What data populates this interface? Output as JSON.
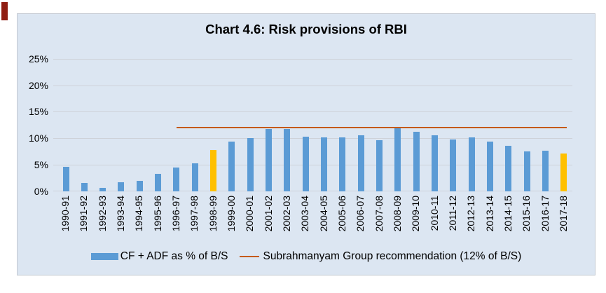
{
  "chart_data": {
    "type": "bar",
    "title": "Chart 4.6: Risk provisions of RBI",
    "categories": [
      "1990-91",
      "1991-92",
      "1992-93",
      "1993-94",
      "1994-95",
      "1995-96",
      "1996-97",
      "1997-98",
      "1998-99",
      "1999-00",
      "2000-01",
      "2001-02",
      "2002-03",
      "2003-04",
      "2004-05",
      "2005-06",
      "2006-07",
      "2007-08",
      "2008-09",
      "2009-10",
      "2010-11",
      "2011-12",
      "2012-13",
      "2013-14",
      "2014-15",
      "2015-16",
      "2016-17",
      "2017-18"
    ],
    "series": [
      {
        "name": "CF + ADF as % of B/S",
        "type": "bar",
        "values": [
          4.6,
          1.5,
          0.6,
          1.6,
          1.9,
          3.3,
          4.5,
          5.3,
          7.7,
          9.3,
          10.0,
          11.8,
          11.7,
          10.3,
          10.2,
          10.1,
          10.5,
          9.6,
          12.0,
          11.2,
          10.5,
          9.8,
          10.2,
          9.3,
          8.5,
          7.5,
          7.6,
          7.1
        ]
      },
      {
        "name": "Subrahmanyam Group recommendation (12% of B/S)",
        "type": "line",
        "value": 12,
        "span_start_category": "1996-97",
        "span_end_category": "2017-18"
      }
    ],
    "highlighted_categories": [
      "1998-99",
      "2017-18"
    ],
    "yticks": [
      {
        "value": 25,
        "label": "25%"
      },
      {
        "value": 20,
        "label": "20%"
      },
      {
        "value": 15,
        "label": "15%"
      },
      {
        "value": 10,
        "label": "10%"
      },
      {
        "value": 5,
        "label": "5%"
      },
      {
        "value": 0,
        "label": "0%"
      }
    ],
    "ylim": [
      0,
      25
    ],
    "xlabel": "",
    "ylabel": "",
    "grid": "horizontal",
    "legend_position": "bottom"
  },
  "colors": {
    "bar_blue": "#5b9bd5",
    "bar_gold": "#ffc000",
    "line_orange": "#c55a11",
    "chart_background": "#dce6f2",
    "chart_border": "#c3c9d1",
    "gridline": "#ced2d9",
    "corner_mark": "#8f1d12",
    "text": "#000000"
  }
}
